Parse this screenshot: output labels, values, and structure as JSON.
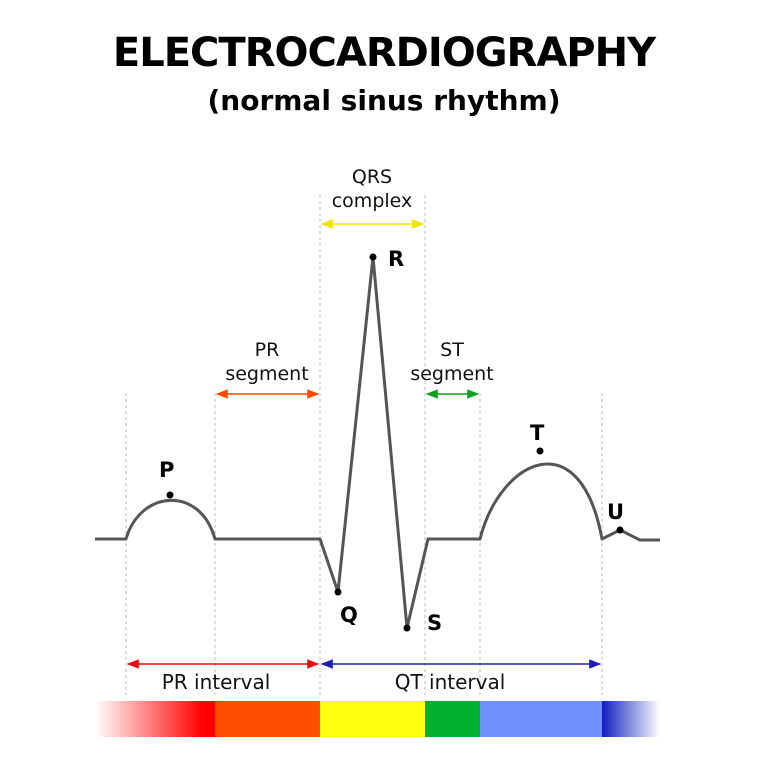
{
  "title": "ELECTROCARDIOGRAPHY",
  "subtitle": "(normal sinus rhythm)",
  "waves": {
    "P": "P",
    "Q": "Q",
    "R": "R",
    "S": "S",
    "T": "T",
    "U": "U"
  },
  "labels": {
    "qrs_line1": "QRS",
    "qrs_line2": "complex",
    "pr_seg_line1": "PR",
    "pr_seg_line2": "segment",
    "st_seg_line1": "ST",
    "st_seg_line2": "segment",
    "pr_interval": "PR interval",
    "qt_interval": "QT interval"
  },
  "colors": {
    "trace": "#555555",
    "qrs_arrow": "#f2e400",
    "pr_segment_arrow": "#ff4a00",
    "st_segment_arrow": "#10a020",
    "pr_interval_arrow": "#e81010",
    "qt_interval_arrow": "#2020b0",
    "band_pr_wave": "#ff0000",
    "band_pr_segment": "#ff4e00",
    "band_qrs": "#ffff10",
    "band_st": "#00b030",
    "band_t": "#7090ff",
    "band_u": "#1020c0"
  }
}
